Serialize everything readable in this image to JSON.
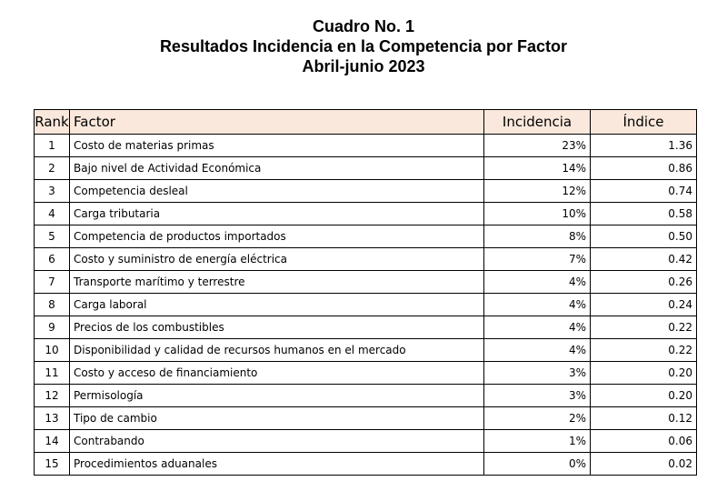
{
  "title": {
    "line1": "Cuadro No. 1",
    "line2": "Resultados Incidencia en la Competencia por Factor",
    "line3": "Abril-junio 2023"
  },
  "table": {
    "headers": [
      "Rank",
      "Factor",
      "Incidencia",
      "Índice"
    ],
    "header_background": "#fae8dc",
    "rows": [
      {
        "rank": "1",
        "factor": "Costo de materias primas",
        "incidencia": "23%",
        "indice": "1.36"
      },
      {
        "rank": "2",
        "factor": "Bajo nivel de Actividad Económica",
        "incidencia": "14%",
        "indice": "0.86"
      },
      {
        "rank": "3",
        "factor": "Competencia desleal",
        "incidencia": "12%",
        "indice": "0.74"
      },
      {
        "rank": "4",
        "factor": "Carga tributaria",
        "incidencia": "10%",
        "indice": "0.58"
      },
      {
        "rank": "5",
        "factor": "Competencia de productos importados",
        "incidencia": "8%",
        "indice": "0.50"
      },
      {
        "rank": "6",
        "factor": "Costo y suministro de energía eléctrica",
        "incidencia": "7%",
        "indice": "0.42"
      },
      {
        "rank": "7",
        "factor": "Transporte marítimo y terrestre",
        "incidencia": "4%",
        "indice": "0.26"
      },
      {
        "rank": "8",
        "factor": "Carga laboral",
        "incidencia": "4%",
        "indice": "0.24"
      },
      {
        "rank": "9",
        "factor": "Precios de los combustibles",
        "incidencia": "4%",
        "indice": "0.22"
      },
      {
        "rank": "10",
        "factor": "Disponibilidad y calidad de recursos humanos en el mercado",
        "incidencia": "4%",
        "indice": "0.22"
      },
      {
        "rank": "11",
        "factor": "Costo y acceso de financiamiento",
        "incidencia": "3%",
        "indice": "0.20"
      },
      {
        "rank": "12",
        "factor": "Permisología",
        "incidencia": "3%",
        "indice": "0.20"
      },
      {
        "rank": "13",
        "factor": "Tipo de cambio",
        "incidencia": "2%",
        "indice": "0.12"
      },
      {
        "rank": "14",
        "factor": "Contrabando",
        "incidencia": "1%",
        "indice": "0.06"
      },
      {
        "rank": "15",
        "factor": "Procedimientos aduanales",
        "incidencia": "0%",
        "indice": "0.02"
      }
    ]
  }
}
